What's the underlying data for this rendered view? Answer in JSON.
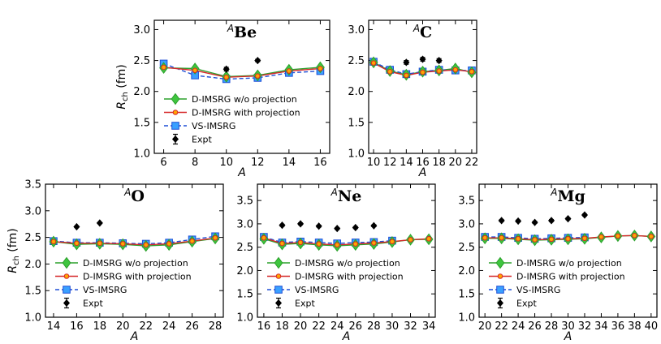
{
  "figure": {
    "colors": {
      "without_projection": "#2ca02c",
      "without_projection_fill": "#3fc53f",
      "with_projection": "#d62728",
      "with_projection_fill": "#ffa500",
      "vs_imsrg": "#1f4fd6",
      "vs_imsrg_fill": "#3aa0ff",
      "expt": "#000000"
    }
  },
  "chart_data": [
    {
      "type": "line",
      "title_sup": "A",
      "title": "Be",
      "xlabel": "A",
      "ylabel_main": "R",
      "ylabel_sub": "ch",
      "ylabel_unit": " (fm)",
      "xlim": [
        5.4,
        16.6
      ],
      "ylim": [
        1.0,
        3.15
      ],
      "xticks": [
        6,
        8,
        10,
        12,
        14,
        16
      ],
      "yticks": [
        1.0,
        1.5,
        2.0,
        2.5,
        3.0
      ],
      "ytick_labels": [
        "1.0",
        "1.5",
        "2.0",
        "2.5",
        "3.0"
      ],
      "legend": [
        "D-IMSRG w/o projection",
        "D-IMSRG with projection",
        "VS-IMSRG",
        "Expt"
      ],
      "series": [
        {
          "name": "D-IMSRG w/o projection",
          "x": [
            6,
            8,
            10,
            12,
            14,
            16
          ],
          "y": [
            2.38,
            2.37,
            2.24,
            2.26,
            2.35,
            2.39
          ]
        },
        {
          "name": "D-IMSRG with projection",
          "x": [
            6,
            8,
            10,
            12,
            14,
            16
          ],
          "y": [
            2.39,
            2.34,
            2.23,
            2.25,
            2.33,
            2.37
          ]
        },
        {
          "name": "VS-IMSRG",
          "x": [
            6,
            8,
            10,
            12,
            14,
            16
          ],
          "y": [
            2.45,
            2.26,
            2.2,
            2.22,
            2.3,
            2.33
          ]
        },
        {
          "name": "Expt",
          "x": [
            10,
            12
          ],
          "y": [
            2.36,
            2.5
          ],
          "err": [
            0.03,
            0.02
          ]
        }
      ]
    },
    {
      "type": "line",
      "title_sup": "A",
      "title": "C",
      "xlabel": "A",
      "xlim": [
        9.4,
        22.6
      ],
      "ylim": [
        1.0,
        3.15
      ],
      "xticks": [
        10,
        12,
        14,
        16,
        18,
        20,
        22
      ],
      "yticks": [
        1.0,
        1.5,
        2.0,
        2.5,
        3.0
      ],
      "ytick_labels": [
        "1.0",
        "1.5",
        "2.0",
        "2.5",
        "3.0"
      ],
      "legend": [
        "D-IMSRG w/o projection",
        "D-IMSRG with projection",
        "VS-IMSRG",
        "Expt"
      ],
      "series": [
        {
          "name": "D-IMSRG w/o projection",
          "x": [
            10,
            12,
            14,
            16,
            18,
            20,
            22
          ],
          "y": [
            2.47,
            2.33,
            2.27,
            2.32,
            2.34,
            2.37,
            2.31
          ]
        },
        {
          "name": "D-IMSRG with projection",
          "x": [
            10,
            12,
            14,
            16,
            18,
            20,
            22
          ],
          "y": [
            2.46,
            2.32,
            2.26,
            2.31,
            2.33,
            2.35,
            2.32
          ]
        },
        {
          "name": "VS-IMSRG",
          "x": [
            10,
            12,
            14,
            16,
            18,
            20,
            22
          ],
          "y": [
            2.48,
            2.35,
            2.28,
            2.32,
            2.35,
            2.34,
            2.34
          ]
        },
        {
          "name": "Expt",
          "x": [
            14,
            16,
            18
          ],
          "y": [
            2.47,
            2.52,
            2.5
          ],
          "err": [
            0.03,
            0.03,
            0.03
          ]
        }
      ]
    },
    {
      "type": "line",
      "title_sup": "A",
      "title": "O",
      "xlabel": "A",
      "ylabel_main": "R",
      "ylabel_sub": "ch",
      "ylabel_unit": " (fm)",
      "xlim": [
        13.3,
        28.7
      ],
      "ylim": [
        1.0,
        3.5
      ],
      "xticks": [
        14,
        16,
        18,
        20,
        22,
        24,
        26,
        28
      ],
      "yticks": [
        1.0,
        1.5,
        2.0,
        2.5,
        3.0,
        3.5
      ],
      "ytick_labels": [
        "1.0",
        "1.5",
        "2.0",
        "2.5",
        "3.0",
        "3.5"
      ],
      "legend": [
        "D-IMSRG w/o projection",
        "D-IMSRG with projection",
        "VS-IMSRG",
        "Expt"
      ],
      "series": [
        {
          "name": "D-IMSRG w/o projection",
          "x": [
            14,
            16,
            18,
            20,
            22,
            24,
            26,
            28
          ],
          "y": [
            2.42,
            2.37,
            2.38,
            2.37,
            2.34,
            2.36,
            2.42,
            2.48
          ]
        },
        {
          "name": "D-IMSRG with projection",
          "x": [
            14,
            16,
            18,
            20,
            22,
            24,
            26,
            28
          ],
          "y": [
            2.42,
            2.39,
            2.39,
            2.38,
            2.36,
            2.38,
            2.43,
            2.49
          ]
        },
        {
          "name": "VS-IMSRG",
          "x": [
            14,
            16,
            18,
            20,
            22,
            24,
            26,
            28
          ],
          "y": [
            2.43,
            2.4,
            2.4,
            2.39,
            2.38,
            2.4,
            2.46,
            2.52
          ]
        },
        {
          "name": "Expt",
          "x": [
            16,
            18
          ],
          "y": [
            2.7,
            2.77
          ],
          "err": [
            0.01,
            0.01
          ]
        }
      ]
    },
    {
      "type": "line",
      "title_sup": "A",
      "title": "Ne",
      "xlabel": "A",
      "xlim": [
        15.3,
        34.7
      ],
      "ylim": [
        1.0,
        3.85
      ],
      "xticks": [
        16,
        18,
        20,
        22,
        24,
        26,
        28,
        30,
        32,
        34
      ],
      "yticks": [
        1.0,
        1.5,
        2.0,
        2.5,
        3.0,
        3.5
      ],
      "ytick_labels": [
        "1.0",
        "1.5",
        "2.0",
        "2.5",
        "3.0",
        "3.5"
      ],
      "legend": [
        "D-IMSRG w/o projection",
        "D-IMSRG with projection",
        "VS-IMSRG",
        "Expt"
      ],
      "series": [
        {
          "name": "D-IMSRG w/o projection",
          "x": [
            16,
            18,
            20,
            22,
            24,
            26,
            28,
            30,
            32,
            34
          ],
          "y": [
            2.68,
            2.56,
            2.58,
            2.55,
            2.53,
            2.55,
            2.57,
            2.61,
            2.66,
            2.67
          ]
        },
        {
          "name": "D-IMSRG with projection",
          "x": [
            16,
            18,
            20,
            22,
            24,
            26,
            28,
            30,
            32,
            34
          ],
          "y": [
            2.7,
            2.58,
            2.6,
            2.57,
            2.55,
            2.57,
            2.59,
            2.62,
            2.66,
            2.68
          ]
        },
        {
          "name": "VS-IMSRG",
          "x": [
            16,
            18,
            20,
            22,
            24,
            26,
            28,
            30
          ],
          "y": [
            2.72,
            2.6,
            2.62,
            2.6,
            2.58,
            2.6,
            2.61,
            2.64
          ]
        },
        {
          "name": "Expt",
          "x": [
            18,
            20,
            22,
            24,
            26,
            28
          ],
          "y": [
            2.97,
            3.0,
            2.95,
            2.9,
            2.92,
            2.96
          ],
          "err": [
            0.02,
            0.02,
            0.02,
            0.02,
            0.02,
            0.02
          ]
        }
      ]
    },
    {
      "type": "line",
      "title_sup": "A",
      "title": "Mg",
      "xlabel": "A",
      "xlim": [
        19.3,
        40.7
      ],
      "ylim": [
        1.0,
        3.85
      ],
      "xticks": [
        20,
        22,
        24,
        26,
        28,
        30,
        32,
        34,
        36,
        38,
        40
      ],
      "yticks": [
        1.0,
        1.5,
        2.0,
        2.5,
        3.0,
        3.5
      ],
      "ytick_labels": [
        "1.0",
        "1.5",
        "2.0",
        "2.5",
        "3.0",
        "3.5"
      ],
      "legend": [
        "D-IMSRG w/o projection",
        "D-IMSRG with projection",
        "VS-IMSRG",
        "Expt"
      ],
      "series": [
        {
          "name": "D-IMSRG w/o projection",
          "x": [
            20,
            22,
            24,
            26,
            28,
            30,
            32,
            34,
            36,
            38,
            40
          ],
          "y": [
            2.69,
            2.69,
            2.67,
            2.65,
            2.66,
            2.67,
            2.68,
            2.71,
            2.74,
            2.75,
            2.73
          ]
        },
        {
          "name": "D-IMSRG with projection",
          "x": [
            20,
            22,
            24,
            26,
            28,
            30,
            32,
            34,
            36,
            38,
            40
          ],
          "y": [
            2.7,
            2.7,
            2.68,
            2.66,
            2.67,
            2.68,
            2.69,
            2.72,
            2.74,
            2.75,
            2.73
          ]
        },
        {
          "name": "VS-IMSRG",
          "x": [
            20,
            22,
            24,
            26,
            28,
            30,
            32
          ],
          "y": [
            2.72,
            2.72,
            2.7,
            2.68,
            2.69,
            2.7,
            2.71
          ]
        },
        {
          "name": "Expt",
          "x": [
            22,
            24,
            26,
            28,
            30,
            32
          ],
          "y": [
            3.07,
            3.06,
            3.03,
            3.07,
            3.11,
            3.19
          ],
          "err": [
            0.02,
            0.02,
            0.02,
            0.02,
            0.02,
            0.02
          ]
        }
      ]
    }
  ]
}
